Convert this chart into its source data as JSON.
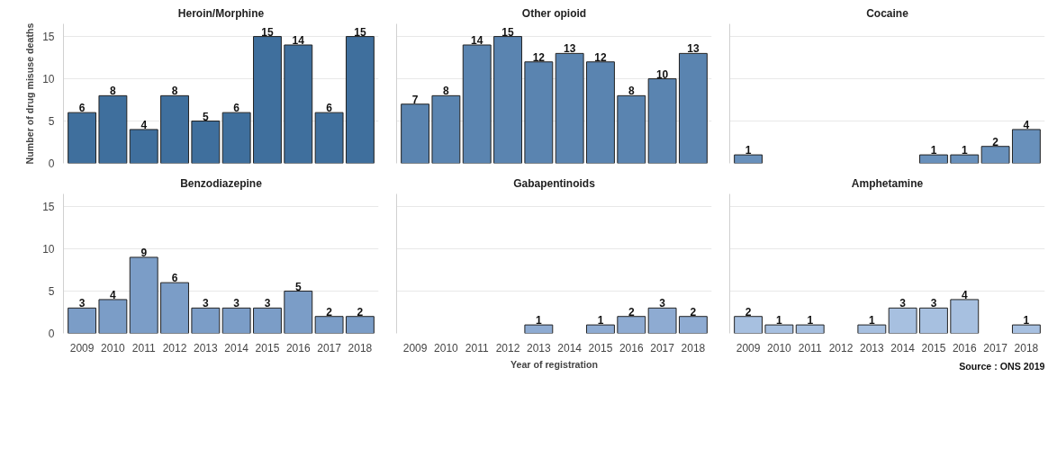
{
  "chart_data": [
    {
      "type": "bar",
      "title": "Heroin/Morphine",
      "ylabel": "Number of drug misuse deaths",
      "categories": [
        "2009",
        "2010",
        "2011",
        "2012",
        "2013",
        "2014",
        "2015",
        "2016",
        "2017",
        "2018"
      ],
      "values": [
        6,
        8,
        4,
        8,
        5,
        6,
        15,
        14,
        6,
        15
      ],
      "color": "#3f6f9d",
      "ylim": [
        0,
        16.5
      ],
      "yticks": [
        0,
        5,
        10,
        15
      ],
      "grid": "y",
      "data_labels": true,
      "tick_labels": "y"
    },
    {
      "type": "bar",
      "title": "Other opioid",
      "categories": [
        "2009",
        "2010",
        "2011",
        "2012",
        "2013",
        "2014",
        "2015",
        "2016",
        "2017",
        "2018"
      ],
      "values": [
        7,
        8,
        14,
        15,
        12,
        13,
        12,
        8,
        10,
        13
      ],
      "color": "#5a84b0",
      "ylim": [
        0,
        16.5
      ],
      "yticks": [
        0,
        5,
        10,
        15
      ],
      "grid": "y",
      "data_labels": true,
      "tick_labels": false
    },
    {
      "type": "bar",
      "title": "Cocaine",
      "categories": [
        "2009",
        "2010",
        "2011",
        "2012",
        "2013",
        "2014",
        "2015",
        "2016",
        "2017",
        "2018"
      ],
      "values": [
        1,
        null,
        null,
        null,
        null,
        null,
        1,
        1,
        2,
        4
      ],
      "color": "#6890bb",
      "ylim": [
        0,
        16.5
      ],
      "yticks": [
        0,
        5,
        10,
        15
      ],
      "grid": "y",
      "data_labels": true,
      "tick_labels": false
    },
    {
      "type": "bar",
      "title": "Benzodiazepine",
      "categories": [
        "2009",
        "2010",
        "2011",
        "2012",
        "2013",
        "2014",
        "2015",
        "2016",
        "2017",
        "2018"
      ],
      "values": [
        3,
        4,
        9,
        6,
        3,
        3,
        3,
        5,
        2,
        2
      ],
      "color": "#7b9dc7",
      "ylim": [
        0,
        16.5
      ],
      "yticks": [
        0,
        5,
        10,
        15
      ],
      "grid": "y",
      "data_labels": true
    },
    {
      "type": "bar",
      "title": "Gabapentinoids",
      "xlabel": "Year of registration",
      "categories": [
        "2009",
        "2010",
        "2011",
        "2012",
        "2013",
        "2014",
        "2015",
        "2016",
        "2017",
        "2018"
      ],
      "values": [
        null,
        null,
        null,
        null,
        1,
        null,
        1,
        2,
        3,
        2
      ],
      "color": "#8eabd2",
      "ylim": [
        0,
        16.5
      ],
      "yticks": [
        0,
        5,
        10,
        15
      ],
      "grid": "y",
      "data_labels": true,
      "tick_labels": "x"
    },
    {
      "type": "bar",
      "title": "Amphetamine",
      "categories": [
        "2009",
        "2010",
        "2011",
        "2012",
        "2013",
        "2014",
        "2015",
        "2016",
        "2017",
        "2018"
      ],
      "values": [
        2,
        1,
        1,
        null,
        1,
        3,
        3,
        4,
        null,
        1
      ],
      "color": "#a7c0e0",
      "ylim": [
        0,
        16.5
      ],
      "yticks": [
        0,
        5,
        10,
        15
      ],
      "grid": "y",
      "data_labels": true,
      "tick_labels": "x",
      "annotations": [
        "Source : ONS 2019"
      ]
    }
  ]
}
